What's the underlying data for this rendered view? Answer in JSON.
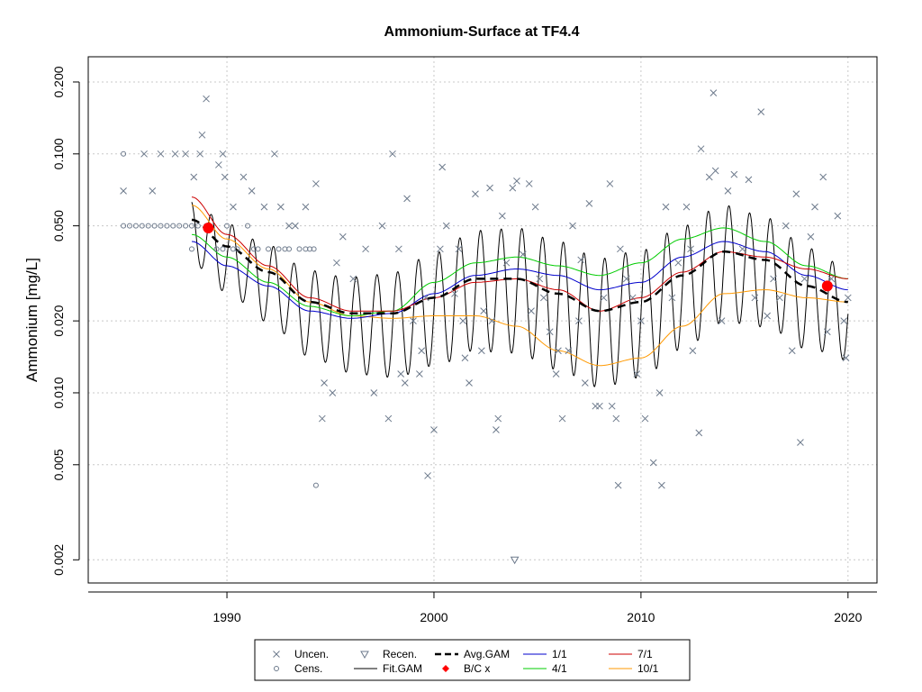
{
  "chart_data": {
    "type": "scatter",
    "title": "Ammonium-Surface at TF4.4",
    "xlabel": "",
    "ylabel": "Ammonium [mg/L]",
    "y_scale": "log",
    "xlim": [
      1983.3,
      2021.4
    ],
    "ylim": [
      0.0016,
      0.255
    ],
    "x_ticks": [
      {
        "value": 1990,
        "label": "1990"
      },
      {
        "value": 2000,
        "label": "2000"
      },
      {
        "value": 2010,
        "label": "2010"
      },
      {
        "value": 2020,
        "label": "2020"
      }
    ],
    "y_ticks": [
      {
        "value": 0.002,
        "label": "0.002"
      },
      {
        "value": 0.005,
        "label": "0.005"
      },
      {
        "value": 0.01,
        "label": "0.010"
      },
      {
        "value": 0.02,
        "label": "0.020"
      },
      {
        "value": 0.05,
        "label": "0.050"
      },
      {
        "value": 0.1,
        "label": "0.100"
      },
      {
        "value": 0.2,
        "label": "0.200"
      }
    ],
    "grid": true,
    "legend_position": "bottom-center",
    "colors": {
      "uncensored": "#6d7a8c",
      "censored": "#6d7a8c",
      "recensored": "#6d7a8c",
      "fit_gam": "#000000",
      "avg_gam": "#000000",
      "bc_points": "#ff0000",
      "jan1": "#0000cc",
      "apr1": "#00cc00",
      "jul1": "#cc0000",
      "oct1": "#ff9900",
      "grid": "#c8c8c8"
    },
    "legend": [
      {
        "key": "uncen",
        "label": "Uncen.",
        "symbol": "x"
      },
      {
        "key": "recen",
        "label": "Recen.",
        "symbol": "triangle-down"
      },
      {
        "key": "avg",
        "label": "Avg.GAM",
        "symbol": "dashed-line"
      },
      {
        "key": "jan",
        "label": "1/1",
        "symbol": "line"
      },
      {
        "key": "jul",
        "label": "7/1",
        "symbol": "line"
      },
      {
        "key": "cens",
        "label": "Cens.",
        "symbol": "circle"
      },
      {
        "key": "fit",
        "label": "Fit.GAM",
        "symbol": "line"
      },
      {
        "key": "bc",
        "label": "B/C x",
        "symbol": "diamond"
      },
      {
        "key": "apr",
        "label": "4/1",
        "symbol": "line"
      },
      {
        "key": "oct",
        "label": "10/1",
        "symbol": "line"
      }
    ],
    "uncensored_points": [
      [
        1985.0,
        0.07
      ],
      [
        1986.0,
        0.1
      ],
      [
        1986.4,
        0.07
      ],
      [
        1986.8,
        0.1
      ],
      [
        1987.5,
        0.1
      ],
      [
        1988.0,
        0.1
      ],
      [
        1988.4,
        0.08
      ],
      [
        1988.7,
        0.1
      ],
      [
        1988.8,
        0.12
      ],
      [
        1989.0,
        0.17
      ],
      [
        1989.6,
        0.09
      ],
      [
        1989.8,
        0.1
      ],
      [
        1989.9,
        0.08
      ],
      [
        1990.3,
        0.06
      ],
      [
        1990.8,
        0.08
      ],
      [
        1991.2,
        0.07
      ],
      [
        1991.8,
        0.06
      ],
      [
        1992.3,
        0.1
      ],
      [
        1992.6,
        0.06
      ],
      [
        1993.0,
        0.05
      ],
      [
        1993.3,
        0.05
      ],
      [
        1993.8,
        0.06
      ],
      [
        1994.3,
        0.075
      ],
      [
        1994.6,
        0.0078
      ],
      [
        1994.7,
        0.011
      ],
      [
        1995.1,
        0.01
      ],
      [
        1995.3,
        0.035
      ],
      [
        1995.6,
        0.045
      ],
      [
        1996.1,
        0.03
      ],
      [
        1996.7,
        0.04
      ],
      [
        1997.1,
        0.01
      ],
      [
        1997.5,
        0.05
      ],
      [
        1997.8,
        0.0078
      ],
      [
        1998.0,
        0.1
      ],
      [
        1998.3,
        0.04
      ],
      [
        1998.4,
        0.012
      ],
      [
        1998.6,
        0.011
      ],
      [
        1998.7,
        0.065
      ],
      [
        1999.0,
        0.02
      ],
      [
        1999.3,
        0.012
      ],
      [
        1999.4,
        0.015
      ],
      [
        1999.6,
        0.025
      ],
      [
        1999.7,
        0.0045
      ],
      [
        2000.0,
        0.007
      ],
      [
        2000.3,
        0.04
      ],
      [
        2000.4,
        0.088
      ],
      [
        2000.6,
        0.05
      ],
      [
        2001.0,
        0.026
      ],
      [
        2001.2,
        0.04
      ],
      [
        2001.4,
        0.02
      ],
      [
        2001.5,
        0.014
      ],
      [
        2001.7,
        0.011
      ],
      [
        2002.0,
        0.068
      ],
      [
        2002.3,
        0.015
      ],
      [
        2002.7,
        0.072
      ],
      [
        2002.8,
        0.02
      ],
      [
        2003.0,
        0.007
      ],
      [
        2003.1,
        0.0078
      ],
      [
        2003.3,
        0.055
      ],
      [
        2003.5,
        0.035
      ],
      [
        2003.8,
        0.072
      ],
      [
        2004.0,
        0.077
      ],
      [
        2004.3,
        0.038
      ],
      [
        2004.6,
        0.075
      ],
      [
        2004.9,
        0.06
      ],
      [
        2005.3,
        0.025
      ],
      [
        2005.6,
        0.018
      ],
      [
        2005.9,
        0.012
      ],
      [
        2006.2,
        0.0078
      ],
      [
        2006.5,
        0.015
      ],
      [
        2006.7,
        0.05
      ],
      [
        2007.0,
        0.02
      ],
      [
        2007.3,
        0.011
      ],
      [
        2007.5,
        0.062
      ],
      [
        2007.8,
        0.0088
      ],
      [
        2008.0,
        0.0088
      ],
      [
        2008.2,
        0.025
      ],
      [
        2008.5,
        0.075
      ],
      [
        2008.6,
        0.0088
      ],
      [
        2008.8,
        0.0078
      ],
      [
        2009.0,
        0.04
      ],
      [
        2009.3,
        0.03
      ],
      [
        2009.6,
        0.025
      ],
      [
        2009.8,
        0.012
      ],
      [
        2010.0,
        0.02
      ],
      [
        2010.2,
        0.0078
      ],
      [
        2010.6,
        0.0051
      ],
      [
        2010.9,
        0.01
      ],
      [
        2011.2,
        0.06
      ],
      [
        2011.5,
        0.025
      ],
      [
        2011.8,
        0.035
      ],
      [
        2012.2,
        0.06
      ],
      [
        2012.5,
        0.015
      ],
      [
        2012.8,
        0.0068
      ],
      [
        2012.9,
        0.105
      ],
      [
        2013.3,
        0.08
      ],
      [
        2013.5,
        0.18
      ],
      [
        2013.6,
        0.085
      ],
      [
        2013.9,
        0.02
      ],
      [
        2014.2,
        0.07
      ],
      [
        2014.5,
        0.082
      ],
      [
        2014.9,
        0.04
      ],
      [
        2015.2,
        0.078
      ],
      [
        2015.5,
        0.025
      ],
      [
        2015.8,
        0.15
      ],
      [
        2016.1,
        0.021
      ],
      [
        2016.4,
        0.03
      ],
      [
        2016.7,
        0.025
      ],
      [
        2017.0,
        0.05
      ],
      [
        2017.3,
        0.015
      ],
      [
        2017.5,
        0.068
      ],
      [
        2017.7,
        0.0062
      ],
      [
        2017.9,
        0.03
      ],
      [
        2018.2,
        0.045
      ],
      [
        2018.4,
        0.06
      ],
      [
        2018.8,
        0.08
      ],
      [
        2019.0,
        0.018
      ],
      [
        2019.2,
        0.03
      ],
      [
        2019.5,
        0.055
      ],
      [
        2019.8,
        0.02
      ],
      [
        2019.9,
        0.014
      ],
      [
        2020.0,
        0.025
      ],
      [
        2012.4,
        0.04
      ],
      [
        2011.0,
        0.0041
      ],
      [
        2008.9,
        0.0041
      ],
      [
        2004.7,
        0.022
      ],
      [
        2005.1,
        0.03
      ],
      [
        2006.0,
        0.015
      ],
      [
        2007.1,
        0.036
      ],
      [
        2002.4,
        0.022
      ]
    ],
    "censored_points": [
      [
        1985.0,
        0.1
      ],
      [
        1985.0,
        0.05
      ],
      [
        1985.3,
        0.05
      ],
      [
        1985.6,
        0.05
      ],
      [
        1985.9,
        0.05
      ],
      [
        1986.2,
        0.05
      ],
      [
        1986.5,
        0.05
      ],
      [
        1986.8,
        0.05
      ],
      [
        1987.1,
        0.05
      ],
      [
        1987.4,
        0.05
      ],
      [
        1987.7,
        0.05
      ],
      [
        1988.0,
        0.05
      ],
      [
        1988.3,
        0.05
      ],
      [
        1988.6,
        0.05
      ],
      [
        1988.3,
        0.04
      ],
      [
        1989.0,
        0.05
      ],
      [
        1989.5,
        0.04
      ],
      [
        1990.0,
        0.05
      ],
      [
        1990.5,
        0.04
      ],
      [
        1991.0,
        0.05
      ],
      [
        1991.5,
        0.04
      ],
      [
        1992.0,
        0.04
      ],
      [
        1992.5,
        0.04
      ],
      [
        1993.0,
        0.04
      ],
      [
        1993.5,
        0.04
      ],
      [
        1994.0,
        0.04
      ],
      [
        1994.3,
        0.0041
      ],
      [
        1989.8,
        0.04
      ],
      [
        1990.3,
        0.04
      ],
      [
        1991.3,
        0.04
      ],
      [
        1992.8,
        0.04
      ],
      [
        1993.8,
        0.04
      ],
      [
        1994.2,
        0.04
      ]
    ],
    "recensored_points": [
      [
        2003.9,
        0.002
      ]
    ],
    "bc_points": [
      [
        1989.1,
        0.049
      ],
      [
        2019.0,
        0.028
      ]
    ],
    "trend_curves": {
      "avg": [
        [
          1988.3,
          0.053
        ],
        [
          1990,
          0.041
        ],
        [
          1992,
          0.032
        ],
        [
          1994,
          0.024
        ],
        [
          1996,
          0.0215
        ],
        [
          1998,
          0.0215
        ],
        [
          2000,
          0.025
        ],
        [
          2002,
          0.03
        ],
        [
          2004,
          0.03
        ],
        [
          2006,
          0.026
        ],
        [
          2008,
          0.022
        ],
        [
          2010,
          0.024
        ],
        [
          2012,
          0.031
        ],
        [
          2014,
          0.039
        ],
        [
          2016,
          0.036
        ],
        [
          2018,
          0.028
        ],
        [
          2020,
          0.024
        ]
      ],
      "jan": [
        [
          1988.3,
          0.043
        ],
        [
          1990,
          0.034
        ],
        [
          1992,
          0.028
        ],
        [
          1994,
          0.022
        ],
        [
          1996,
          0.0205
        ],
        [
          1998,
          0.0215
        ],
        [
          2000,
          0.026
        ],
        [
          2002,
          0.031
        ],
        [
          2004,
          0.033
        ],
        [
          2006,
          0.031
        ],
        [
          2008,
          0.027
        ],
        [
          2010,
          0.029
        ],
        [
          2012,
          0.037
        ],
        [
          2014,
          0.043
        ],
        [
          2016,
          0.039
        ],
        [
          2018,
          0.031
        ],
        [
          2020,
          0.027
        ]
      ],
      "apr": [
        [
          1988.3,
          0.046
        ],
        [
          1990,
          0.037
        ],
        [
          1992,
          0.029
        ],
        [
          1994,
          0.023
        ],
        [
          1996,
          0.021
        ],
        [
          1998,
          0.022
        ],
        [
          2000,
          0.029
        ],
        [
          2002,
          0.035
        ],
        [
          2004,
          0.037
        ],
        [
          2006,
          0.034
        ],
        [
          2008,
          0.031
        ],
        [
          2010,
          0.035
        ],
        [
          2012,
          0.044
        ],
        [
          2014,
          0.049
        ],
        [
          2016,
          0.043
        ],
        [
          2018,
          0.034
        ],
        [
          2020,
          0.03
        ]
      ],
      "jul": [
        [
          1988.3,
          0.066
        ],
        [
          1990,
          0.046
        ],
        [
          1992,
          0.034
        ],
        [
          1994,
          0.025
        ],
        [
          1996,
          0.022
        ],
        [
          1998,
          0.022
        ],
        [
          2000,
          0.025
        ],
        [
          2002,
          0.029
        ],
        [
          2004,
          0.03
        ],
        [
          2006,
          0.027
        ],
        [
          2008,
          0.022
        ],
        [
          2010,
          0.025
        ],
        [
          2012,
          0.032
        ],
        [
          2014,
          0.039
        ],
        [
          2016,
          0.037
        ],
        [
          2018,
          0.033
        ],
        [
          2020,
          0.03
        ]
      ],
      "oct": [
        [
          1988.3,
          0.061
        ],
        [
          1990,
          0.044
        ],
        [
          1992,
          0.033
        ],
        [
          1994,
          0.024
        ],
        [
          1996,
          0.021
        ],
        [
          1998,
          0.0205
        ],
        [
          2000,
          0.021
        ],
        [
          2002,
          0.021
        ],
        [
          2004,
          0.019
        ],
        [
          2006,
          0.015
        ],
        [
          2008,
          0.013
        ],
        [
          2010,
          0.014
        ],
        [
          2012,
          0.019
        ],
        [
          2014,
          0.026
        ],
        [
          2016,
          0.027
        ],
        [
          2018,
          0.025
        ],
        [
          2020,
          0.024
        ]
      ]
    },
    "fit_gam": {
      "start": 1988.3,
      "end": 2020.0,
      "peak_month_fraction": 0.25,
      "trough_month_fraction": 0.75
    }
  }
}
